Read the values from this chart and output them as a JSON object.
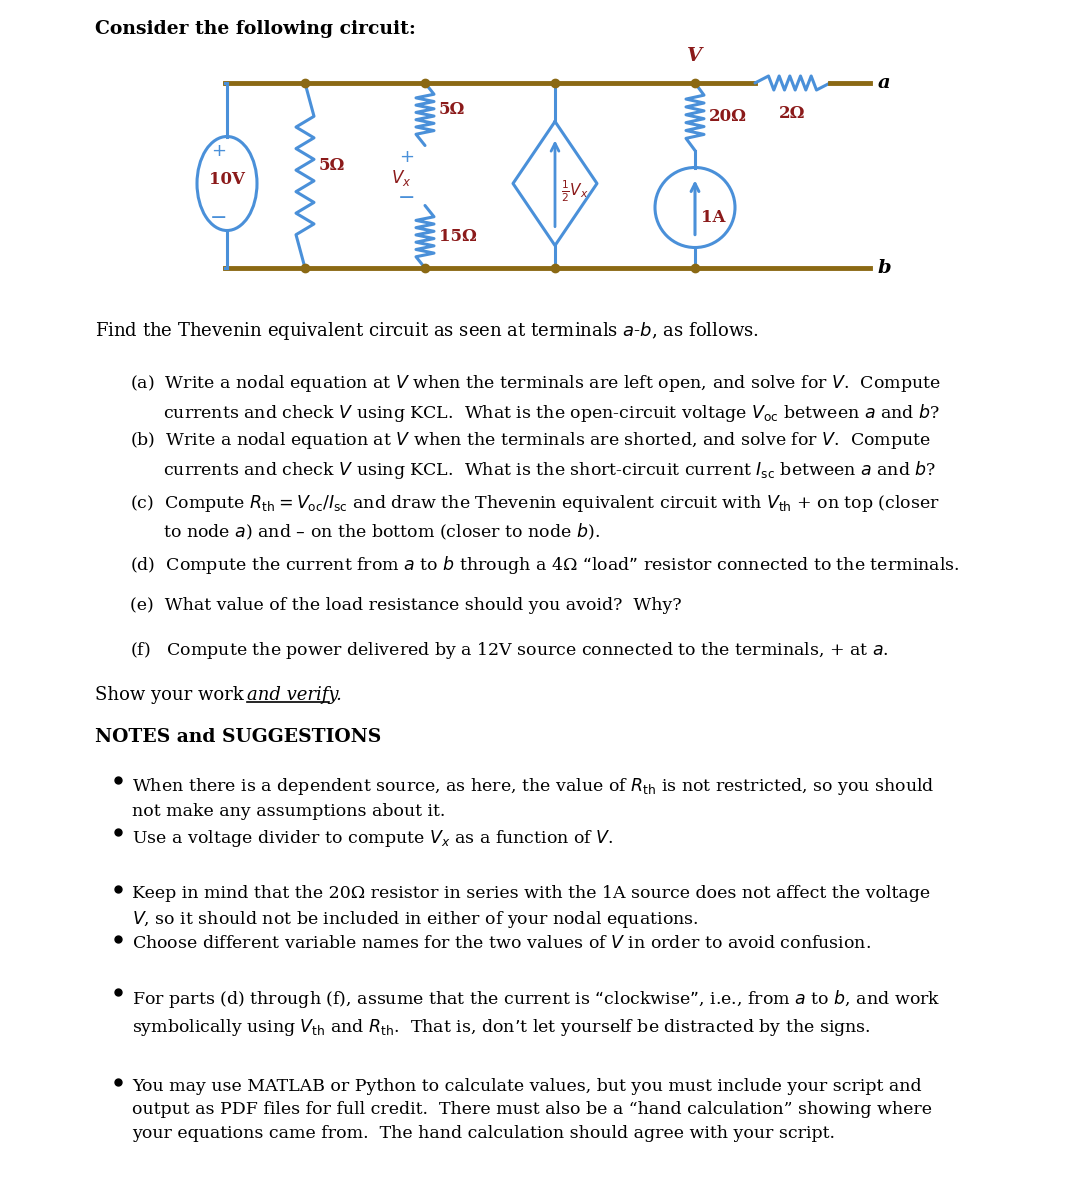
{
  "title_text": "Consider the following circuit:",
  "bg_color": "#ffffff",
  "circuit_color": "#4a90d9",
  "wire_color": "#8B6914",
  "label_color": "#8B1A1A",
  "fig_width": 10.86,
  "fig_height": 11.78,
  "text_color": "#000000",
  "find_text": "Find the Thevenin equivalent circuit as seen at terminals $a$-$b$, as follows.",
  "show_work_plain": "Show your work ",
  "show_work_italic": "and verify.",
  "notes_title": "NOTES and SUGGESTIONS"
}
